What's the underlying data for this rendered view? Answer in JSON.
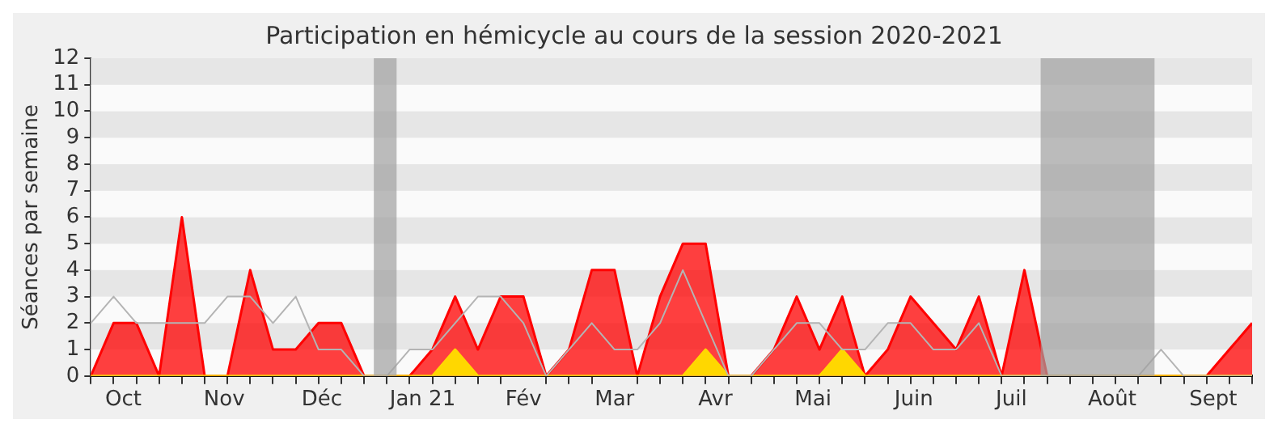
{
  "chart_data": {
    "type": "area",
    "title": "Participation en hémicycle au cours de la session 2020-2021",
    "ylabel": "Séances par semaine",
    "x": [
      "2020-09-21",
      "2020-09-28",
      "2020-10-05",
      "2020-10-12",
      "2020-10-19",
      "2020-10-26",
      "2020-11-02",
      "2020-11-09",
      "2020-11-16",
      "2020-11-23",
      "2020-11-30",
      "2020-12-07",
      "2020-12-14",
      "2020-12-21",
      "2020-12-28",
      "2021-01-04",
      "2021-01-11",
      "2021-01-18",
      "2021-01-25",
      "2021-02-01",
      "2021-02-08",
      "2021-02-15",
      "2021-02-22",
      "2021-03-01",
      "2021-03-08",
      "2021-03-15",
      "2021-03-22",
      "2021-03-29",
      "2021-04-05",
      "2021-04-12",
      "2021-04-19",
      "2021-04-26",
      "2021-05-03",
      "2021-05-10",
      "2021-05-17",
      "2021-05-24",
      "2021-05-31",
      "2021-06-07",
      "2021-06-14",
      "2021-06-21",
      "2021-06-28",
      "2021-07-05",
      "2021-07-12",
      "2021-07-19",
      "2021-07-26",
      "2021-08-02",
      "2021-08-09",
      "2021-08-16",
      "2021-08-23",
      "2021-08-30",
      "2021-09-06",
      "2021-09-13"
    ],
    "series": [
      {
        "type": "line",
        "color": "#b4b4b4",
        "values": [
          2,
          3,
          2,
          2,
          2,
          2,
          3,
          3,
          2,
          3,
          1,
          1,
          0,
          0,
          1,
          1,
          2,
          3,
          3,
          2,
          0,
          1,
          2,
          1,
          1,
          2,
          4,
          2,
          0,
          0,
          1,
          2,
          2,
          1,
          1,
          2,
          2,
          1,
          1,
          2,
          0,
          0,
          0,
          0,
          0,
          0,
          0,
          1,
          0,
          0,
          0,
          0
        ]
      },
      {
        "color": "#ff0000",
        "values": [
          0,
          2,
          2,
          0,
          6,
          0,
          0,
          4,
          1,
          1,
          2,
          2,
          0,
          0,
          0,
          1,
          3,
          1,
          3,
          3,
          0,
          1,
          4,
          4,
          0,
          3,
          5,
          5,
          0,
          0,
          1,
          3,
          1,
          3,
          0,
          1,
          3,
          2,
          1,
          3,
          0,
          4,
          0,
          0,
          0,
          0,
          0,
          0,
          0,
          0,
          1,
          2
        ]
      },
      {
        "color": "#ffd700",
        "values": [
          0,
          0,
          0,
          0,
          0,
          0,
          0,
          0,
          0,
          0,
          0,
          0,
          0,
          0,
          0,
          0,
          1,
          0,
          0,
          0,
          0,
          0,
          0,
          0,
          0,
          0,
          0,
          1,
          0,
          0,
          0,
          0,
          0,
          1,
          0,
          0,
          0,
          0,
          0,
          0,
          0,
          0,
          0,
          0,
          0,
          0,
          0,
          0,
          0,
          0,
          0,
          0
        ]
      }
    ],
    "xlim": [
      "2020-09-21",
      "2021-09-13"
    ],
    "xticks": [
      {
        "value": "2020-09-21",
        "label": null
      },
      {
        "value": "2020-09-28",
        "label": null
      },
      {
        "value": "2020-10-05",
        "label": null
      },
      {
        "value": "2020-10-12",
        "label": null
      },
      {
        "value": "2020-10-19",
        "label": null
      },
      {
        "value": "2020-10-26",
        "label": null
      },
      {
        "value": "2020-11-02",
        "label": null
      },
      {
        "value": "2020-11-09",
        "label": null
      },
      {
        "value": "2020-11-16",
        "label": null
      },
      {
        "value": "2020-11-23",
        "label": null
      },
      {
        "value": "2020-11-30",
        "label": null
      },
      {
        "value": "2020-12-07",
        "label": null
      },
      {
        "value": "2020-12-14",
        "label": null
      },
      {
        "value": "2020-12-21",
        "label": null
      },
      {
        "value": "2020-12-28",
        "label": null
      },
      {
        "value": "2021-01-04",
        "label": null
      },
      {
        "value": "2021-01-11",
        "label": null
      },
      {
        "value": "2021-01-18",
        "label": null
      },
      {
        "value": "2021-01-25",
        "label": null
      },
      {
        "value": "2021-02-08",
        "label": null
      },
      {
        "value": "2021-02-15",
        "label": null
      },
      {
        "value": "2021-02-22",
        "label": null
      },
      {
        "value": "2021-03-08",
        "label": null
      },
      {
        "value": "2021-03-15",
        "label": null
      },
      {
        "value": "2021-03-22",
        "label": null
      },
      {
        "value": "2021-03-29",
        "label": null
      },
      {
        "value": "2021-04-05",
        "label": null
      },
      {
        "value": "2021-04-12",
        "label": null
      },
      {
        "value": "2021-04-19",
        "label": null
      },
      {
        "value": "2021-04-26",
        "label": null
      },
      {
        "value": "2021-05-03",
        "label": null
      },
      {
        "value": "2021-05-10",
        "label": null
      },
      {
        "value": "2021-05-17",
        "label": null
      },
      {
        "value": "2021-05-24",
        "label": null
      },
      {
        "value": "2021-05-31",
        "label": null
      },
      {
        "value": "2021-06-07",
        "label": null
      },
      {
        "value": "2021-06-14",
        "label": null
      },
      {
        "value": "2021-06-21",
        "label": null
      },
      {
        "value": "2021-06-28",
        "label": null
      },
      {
        "value": "2021-07-05",
        "label": null
      },
      {
        "value": "2021-07-12",
        "label": null
      },
      {
        "value": "2021-07-19",
        "label": null
      },
      {
        "value": "2021-07-26",
        "label": null
      },
      {
        "value": "2021-08-02",
        "label": null
      },
      {
        "value": "2021-08-09",
        "label": null
      },
      {
        "value": "2021-08-16",
        "label": null
      },
      {
        "value": "2021-08-23",
        "label": null
      },
      {
        "value": "2021-08-30",
        "label": null
      },
      {
        "value": "2021-09-06",
        "label": null
      },
      {
        "value": "2021-09-13",
        "label": null
      },
      {
        "value": "2020-10-01",
        "label": "Oct"
      },
      {
        "value": "2020-11-01",
        "label": "Nov"
      },
      {
        "value": "2020-12-01",
        "label": "Déc"
      },
      {
        "value": "2021-01-01",
        "label": "Jan 21"
      },
      {
        "value": "2021-02-01",
        "label": "Fév"
      },
      {
        "value": "2021-03-01",
        "label": "Mar"
      },
      {
        "value": "2021-04-01",
        "label": "Avr"
      },
      {
        "value": "2021-05-01",
        "label": "Mai"
      },
      {
        "value": "2021-06-01",
        "label": "Juin"
      },
      {
        "value": "2021-07-01",
        "label": "Juil"
      },
      {
        "value": "2021-08-01",
        "label": "Août"
      },
      {
        "value": "2021-09-01",
        "label": "Sept"
      }
    ],
    "ylim": [
      0,
      12
    ],
    "yticks": [
      0,
      1,
      2,
      3,
      4,
      5,
      6,
      7,
      8,
      9,
      10,
      11,
      12
    ],
    "bands": [
      {
        "axis": "x",
        "from": "2020-12-17",
        "to": "2020-12-24",
        "color": "#a0a0a0"
      },
      {
        "axis": "x",
        "from": "2021-07-10",
        "to": "2021-08-14",
        "color": "#a0a0a0"
      }
    ],
    "legend": false
  }
}
